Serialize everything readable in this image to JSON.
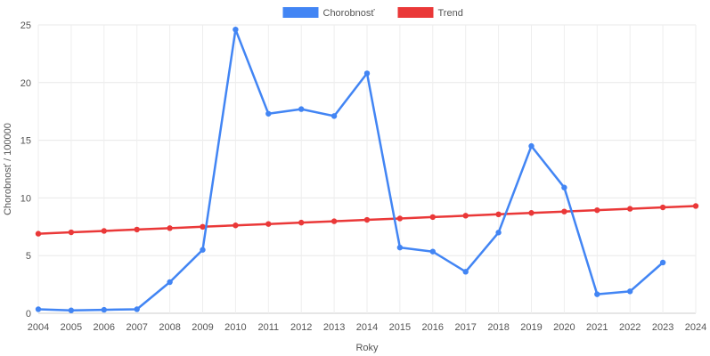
{
  "chart_data": {
    "type": "line",
    "xlabel": "Roky",
    "ylabel": "Chorobnosť / 100000",
    "ylim": [
      0,
      25
    ],
    "yticks": [
      0,
      5,
      10,
      15,
      20,
      25
    ],
    "grid": true,
    "legend_position": "top-center",
    "categories": [
      "2004",
      "2005",
      "2006",
      "2007",
      "2008",
      "2009",
      "2010",
      "2011",
      "2012",
      "2013",
      "2014",
      "2015",
      "2016",
      "2017",
      "2018",
      "2019",
      "2020",
      "2021",
      "2022",
      "2023",
      "2024"
    ],
    "series": [
      {
        "name": "Chorobnosť",
        "color": "#4285f4",
        "values": [
          0.35,
          0.25,
          0.3,
          0.35,
          2.7,
          5.5,
          24.6,
          17.3,
          17.7,
          17.1,
          20.8,
          5.7,
          5.35,
          3.6,
          7.0,
          14.5,
          10.9,
          1.65,
          1.9,
          4.4,
          null
        ]
      },
      {
        "name": "Trend",
        "color": "#ea3838",
        "values": [
          6.9,
          7.02,
          7.14,
          7.26,
          7.38,
          7.5,
          7.62,
          7.74,
          7.86,
          7.98,
          8.1,
          8.22,
          8.34,
          8.46,
          8.58,
          8.7,
          8.82,
          8.94,
          9.06,
          9.18,
          9.3
        ]
      }
    ]
  }
}
